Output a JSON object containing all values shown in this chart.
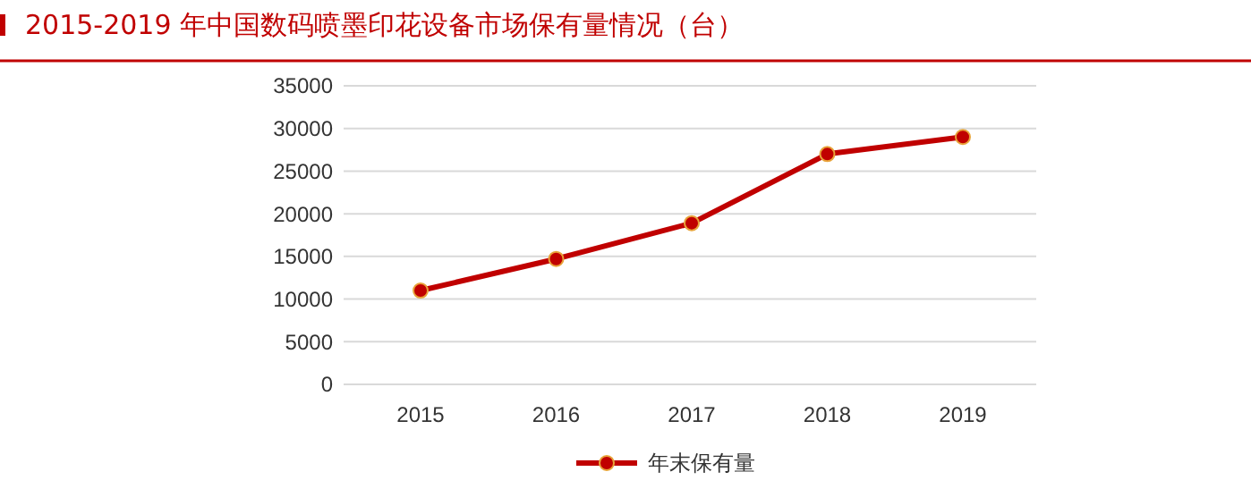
{
  "chart_data": {
    "type": "line",
    "title": "2015-2019 年中国数码喷墨印花设备市场保有量情况（台）",
    "categories": [
      "2015",
      "2016",
      "2017",
      "2018",
      "2019"
    ],
    "series": [
      {
        "name": "年末保有量",
        "color": "#c00000",
        "values": [
          11000,
          14700,
          18900,
          27000,
          29000
        ]
      }
    ],
    "ylim": [
      0,
      35000
    ],
    "yticks": [
      0,
      5000,
      10000,
      15000,
      20000,
      25000,
      30000,
      35000
    ],
    "grid": "y",
    "legend": "bottom",
    "marker": "circle",
    "line_style": "solid"
  }
}
